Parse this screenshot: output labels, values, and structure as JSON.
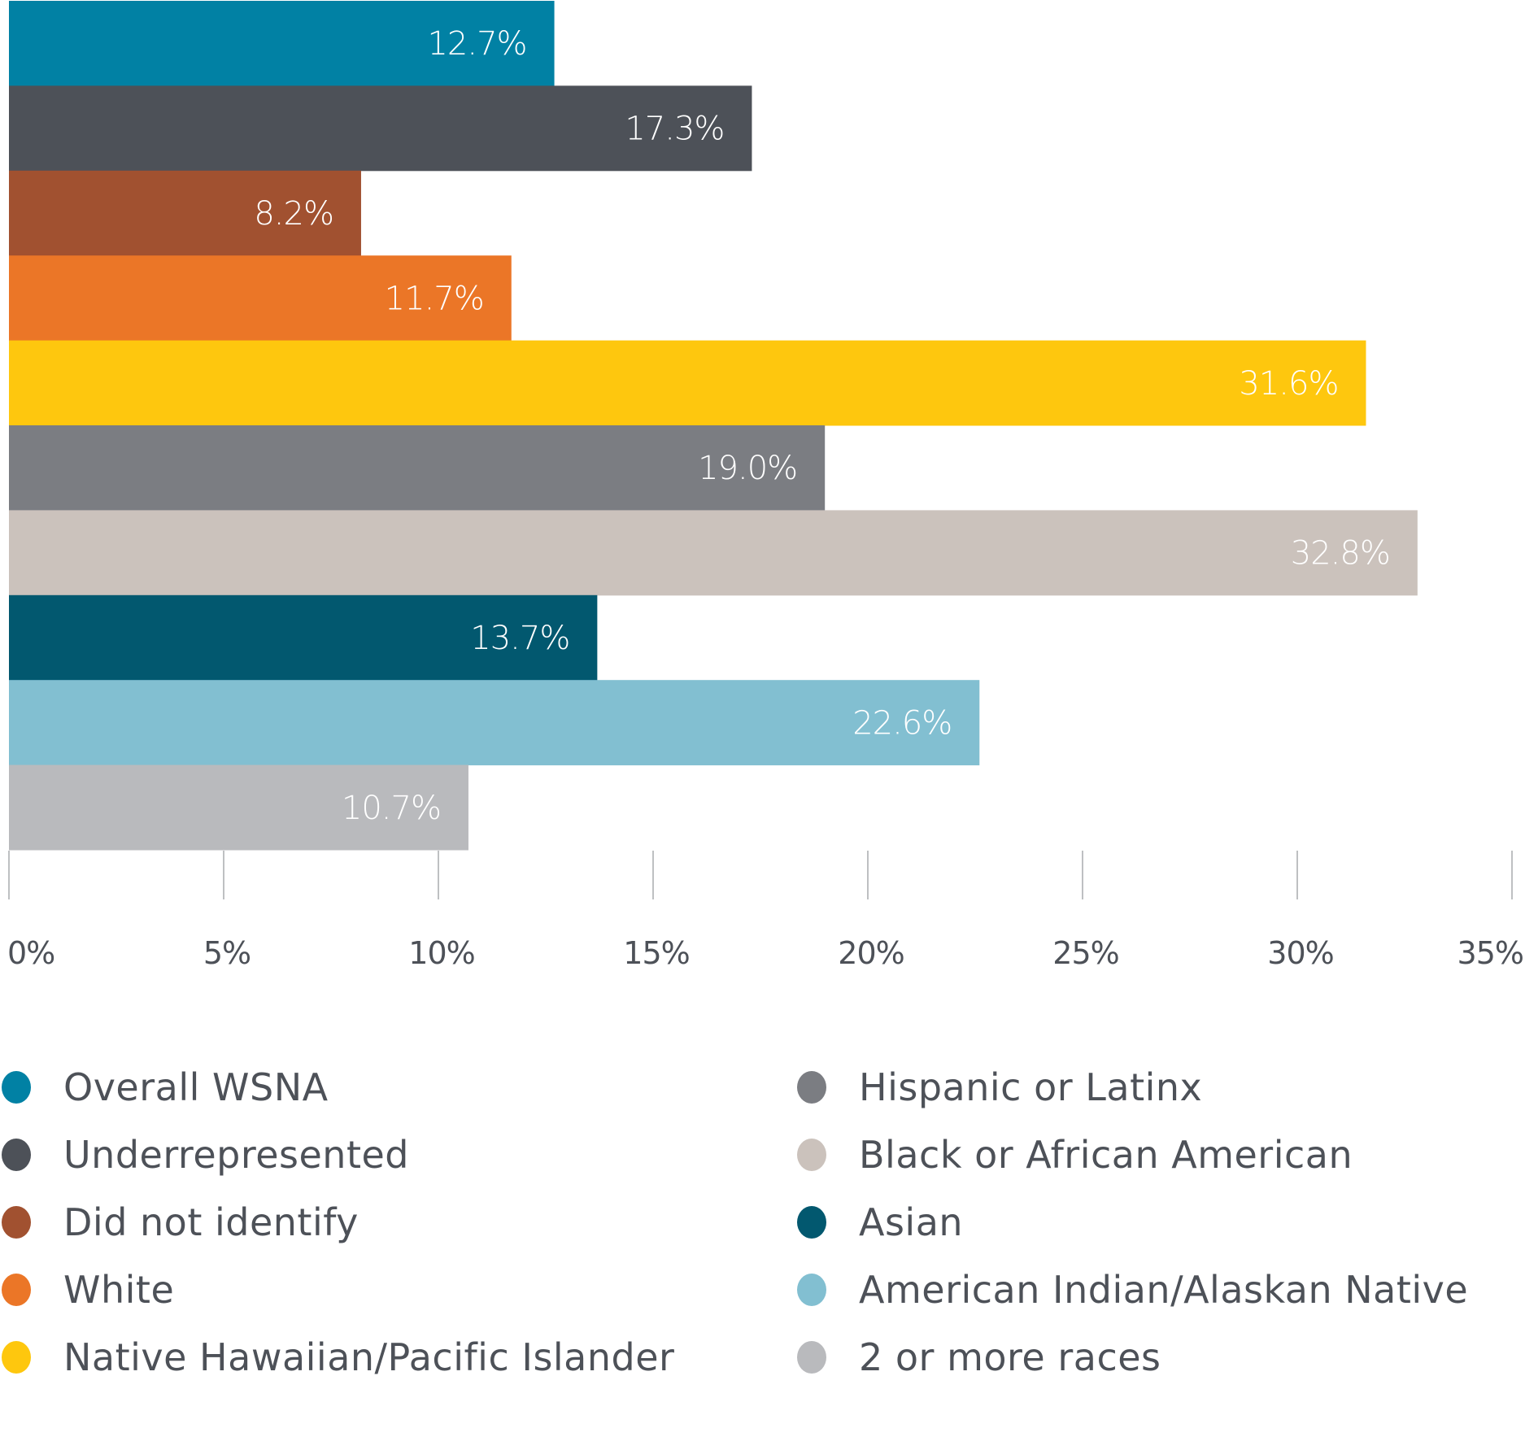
{
  "chart_data": {
    "type": "bar",
    "orientation": "horizontal",
    "title": "",
    "xlabel": "",
    "ylabel": "",
    "xlim": [
      0,
      35
    ],
    "x_ticks": [
      0,
      5,
      10,
      15,
      20,
      25,
      30,
      35
    ],
    "x_tick_labels": [
      "0%",
      "5%",
      "10%",
      "15%",
      "20%",
      "25%",
      "30%",
      "35%"
    ],
    "grid": false,
    "legend_position": "bottom",
    "categories": [
      "Overall WSNA",
      "Underrepresented",
      "Did not identify",
      "White",
      "Native Hawaiian/Pacific Islander",
      "Hispanic or Latinx",
      "Black or African American",
      "Asian",
      "American Indian/Alaskan Native",
      "2 or more races"
    ],
    "values": [
      12.7,
      17.3,
      8.2,
      11.7,
      31.6,
      19.0,
      32.8,
      13.7,
      22.6,
      10.7
    ],
    "data_labels": [
      "12.7%",
      "17.3%",
      "8.2%",
      "11.7%",
      "31.6%",
      "19.0%",
      "32.8%",
      "13.7%",
      "22.6%",
      "10.7%"
    ],
    "colors": [
      "#0181a4",
      "#4d5158",
      "#a15130",
      "#eb7627",
      "#fec70e",
      "#7b7d82",
      "#cbc2bc",
      "#02586f",
      "#82bfd1",
      "#b9babd"
    ]
  },
  "legend": {
    "left": [
      {
        "label": "Overall WSNA",
        "color": "#0181a4"
      },
      {
        "label": "Underrepresented",
        "color": "#4d5158"
      },
      {
        "label": "Did not identify",
        "color": "#a15130"
      },
      {
        "label": "White",
        "color": "#eb7627"
      },
      {
        "label": "Native Hawaiian/Pacific Islander",
        "color": "#fec70e"
      }
    ],
    "right": [
      {
        "label": "Hispanic or Latinx",
        "color": "#7b7d82"
      },
      {
        "label": "Black or African American",
        "color": "#cbc2bc"
      },
      {
        "label": "Asian",
        "color": "#02586f"
      },
      {
        "label": "American Indian/Alaskan Native",
        "color": "#82bfd1"
      },
      {
        "label": "2 or more races",
        "color": "#b9babd"
      }
    ]
  }
}
